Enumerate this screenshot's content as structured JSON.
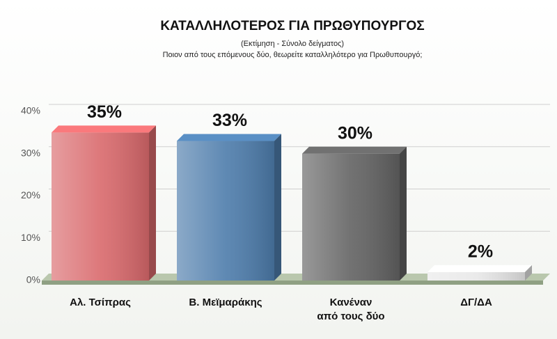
{
  "chart_data": {
    "type": "bar3d",
    "title": "ΚΑΤΑΛΛΗΛΟΤΕΡΟΣ ΓΙΑ ΠΡΩΘΥΠΟΥΡΓΟΣ",
    "subtitle": "(Εκτίμηση - Σύνολο δείγματος)",
    "question": "Ποιον από τους επόμενους δύο, θεωρείτε καταλληλότερο για Πρωθυπουργό;",
    "categories": [
      "Αλ. Τσίπρας",
      "Β. Μεϊμαράκης",
      "Κανέναν\nαπό τους δύο",
      "ΔΓ/ΔΑ"
    ],
    "values": [
      35,
      33,
      30,
      2
    ],
    "value_labels": [
      "35%",
      "33%",
      "30%",
      "2%"
    ],
    "colors": [
      "#d9696c",
      "#4d7cab",
      "#626262",
      "#e8e8e8"
    ],
    "ylim": [
      0,
      40
    ],
    "yticks": [
      {
        "value": 0,
        "label": "0%"
      },
      {
        "value": 10,
        "label": "10%"
      },
      {
        "value": 20,
        "label": "20%"
      },
      {
        "value": 30,
        "label": "30%"
      },
      {
        "value": 40,
        "label": "40%"
      }
    ],
    "grid": true
  }
}
